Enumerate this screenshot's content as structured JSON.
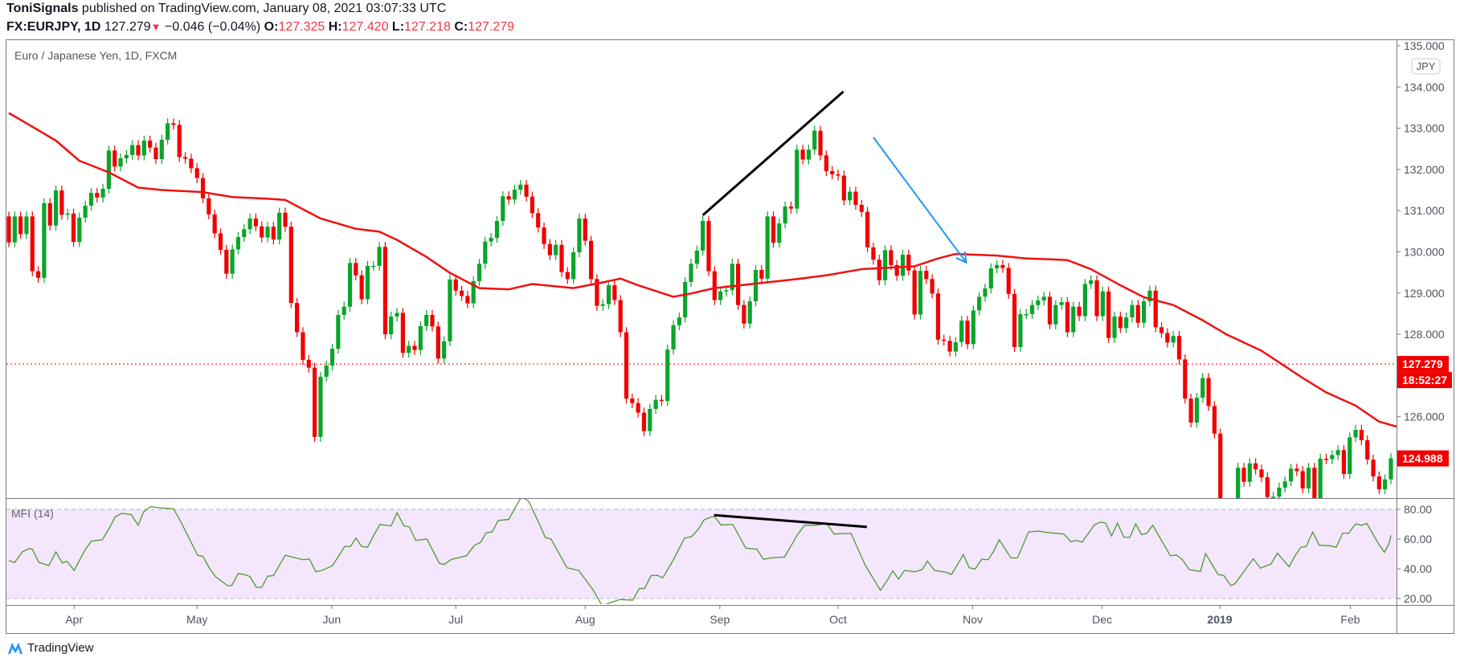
{
  "header": {
    "author": "ToniSignals",
    "published": " published on TradingView.com, January 08, 2021 03:07:33 UTC",
    "symbol": "FX:EURJPY, 1D",
    "last": "127.279",
    "change": "−0.046 (−0.04%)",
    "o_label": "O:",
    "o": "127.325",
    "h_label": "H:",
    "h": "127.420",
    "l_label": "L:",
    "l": "127.218",
    "c_label": "C:",
    "c": "127.279"
  },
  "footer": {
    "brand": "TradingView",
    "logo_icon": "tradingview-logo-icon"
  },
  "colors": {
    "up": "#0aa52a",
    "down": "#f20000",
    "ma": "#f01010",
    "mfi": "#4f9a2e",
    "mfi_bg": "#f3e6fd",
    "trendline": "#000000",
    "arrow": "#2196f3",
    "price_label": "#f20000"
  },
  "chart_data": [
    {
      "type": "candlestick",
      "title": "Euro / Japanese Yen, 1D, FXCM",
      "currency_badge": "JPY",
      "ylim": [
        124.03,
        135.1
      ],
      "yticks": [
        "135.000",
        "134.000",
        "133.000",
        "132.000",
        "131.000",
        "130.000",
        "129.000",
        "128.000",
        "126.000"
      ],
      "ytick_values": [
        135,
        134,
        133,
        132,
        131,
        130,
        129,
        128,
        126
      ],
      "price_lines": [
        {
          "label": "127.279",
          "value": 127.279,
          "sub": "18:52:27",
          "dotted": true
        },
        {
          "label": "124.988",
          "value": 124.988
        }
      ],
      "xticks": [
        {
          "label": "Apr",
          "bar": 11.1
        },
        {
          "label": "May",
          "bar": 32
        },
        {
          "label": "Jun",
          "bar": 54.9
        },
        {
          "label": "Jul",
          "bar": 76
        },
        {
          "label": "Aug",
          "bar": 98
        },
        {
          "label": "Sep",
          "bar": 120.9
        },
        {
          "label": "Oct",
          "bar": 141
        },
        {
          "label": "Nov",
          "bar": 163.9
        },
        {
          "label": "Dec",
          "bar": 185.9
        },
        {
          "label": "2019",
          "bar": 205.9,
          "bold": true
        },
        {
          "label": "Feb",
          "bar": 228.1
        }
      ],
      "first_open": 130.86,
      "closes": [
        130.23,
        130.86,
        130.43,
        130.86,
        129.53,
        129.37,
        131.18,
        130.64,
        131.49,
        130.9,
        130.93,
        130.24,
        130.83,
        131.12,
        131.43,
        131.32,
        131.53,
        132.46,
        132.07,
        132.27,
        132.35,
        132.59,
        132.34,
        132.7,
        132.53,
        132.25,
        132.72,
        133.12,
        133.08,
        132.3,
        132.26,
        132.03,
        131.79,
        131.3,
        130.91,
        130.45,
        130.05,
        129.47,
        130.06,
        130.36,
        130.55,
        130.81,
        130.62,
        130.35,
        130.61,
        130.3,
        130.95,
        130.61,
        128.76,
        128.05,
        127.38,
        127.19,
        125.51,
        126.97,
        127.24,
        127.65,
        128.47,
        128.67,
        129.73,
        129.43,
        128.85,
        129.66,
        129.66,
        130.12,
        128.0,
        128.43,
        128.52,
        127.55,
        127.72,
        127.62,
        128.2,
        128.47,
        128.19,
        127.41,
        127.83,
        129.33,
        129.06,
        128.93,
        128.75,
        129.29,
        129.71,
        130.25,
        130.34,
        130.75,
        131.35,
        131.27,
        131.51,
        131.63,
        131.34,
        130.94,
        130.59,
        130.19,
        129.92,
        130.17,
        129.51,
        129.34,
        129.99,
        130.81,
        130.27,
        129.34,
        128.69,
        128.73,
        129.19,
        128.83,
        128.05,
        126.44,
        126.33,
        126.1,
        125.65,
        126.19,
        126.41,
        126.38,
        127.63,
        128.22,
        128.41,
        129.27,
        129.71,
        130.03,
        130.75,
        129.53,
        128.83,
        129.04,
        129.07,
        129.71,
        128.71,
        128.26,
        128.8,
        129.56,
        129.35,
        130.86,
        130.22,
        130.69,
        131.1,
        131.05,
        132.48,
        132.24,
        132.48,
        132.94,
        132.34,
        131.96,
        131.88,
        131.85,
        131.25,
        131.46,
        131.14,
        130.97,
        130.11,
        129.81,
        129.31,
        130.04,
        129.68,
        129.42,
        129.93,
        129.55,
        128.48,
        129.54,
        129.34,
        128.99,
        127.87,
        127.84,
        127.58,
        127.81,
        128.33,
        127.76,
        128.58,
        128.91,
        129.11,
        129.6,
        129.68,
        129.61,
        128.98,
        127.69,
        128.49,
        128.49,
        128.71,
        128.82,
        128.91,
        128.24,
        128.71,
        128.78,
        128.05,
        128.67,
        128.44,
        129.22,
        129.31,
        128.44,
        129.04,
        127.91,
        128.43,
        128.15,
        128.41,
        128.71,
        128.28,
        128.8,
        129.06,
        128.17,
        128.03,
        127.8,
        127.96,
        127.39,
        126.44,
        125.86,
        126.46,
        126.94,
        126.26,
        125.59,
        123.4,
        122.9,
        123.6,
        124.76,
        124.42,
        124.87,
        124.72,
        124.53,
        124.05,
        124.06,
        124.28,
        124.43,
        124.74,
        124.68,
        124.26,
        124.76,
        124.02,
        124.98,
        124.97,
        125.07,
        125.19,
        124.61,
        125.5,
        125.68,
        125.43,
        124.96,
        124.55,
        124.24,
        124.48,
        124.99
      ],
      "moving_average": [
        [
          0,
          133.37
        ],
        [
          3,
          133.12
        ],
        [
          8,
          132.7
        ],
        [
          12,
          132.21
        ],
        [
          17,
          131.93
        ],
        [
          22,
          131.56
        ],
        [
          26,
          131.5
        ],
        [
          33,
          131.45
        ],
        [
          38,
          131.33
        ],
        [
          44,
          131.29
        ],
        [
          47,
          131.26
        ],
        [
          53,
          130.81
        ],
        [
          59,
          130.56
        ],
        [
          63,
          130.49
        ],
        [
          66,
          130.29
        ],
        [
          71,
          129.88
        ],
        [
          75,
          129.49
        ],
        [
          80,
          129.12
        ],
        [
          85,
          129.09
        ],
        [
          89,
          129.22
        ],
        [
          96,
          129.12
        ],
        [
          101,
          129.26
        ],
        [
          104,
          129.35
        ],
        [
          107,
          129.19
        ],
        [
          113,
          128.91
        ],
        [
          116,
          128.99
        ],
        [
          120,
          129.12
        ],
        [
          127,
          129.23
        ],
        [
          134,
          129.34
        ],
        [
          139,
          129.43
        ],
        [
          145,
          129.58
        ],
        [
          154,
          129.65
        ],
        [
          158,
          129.84
        ],
        [
          161,
          129.95
        ],
        [
          168,
          129.91
        ],
        [
          173,
          129.84
        ],
        [
          177,
          129.82
        ],
        [
          180,
          129.8
        ],
        [
          184,
          129.58
        ],
        [
          189,
          129.19
        ],
        [
          193,
          128.9
        ],
        [
          198,
          128.71
        ],
        [
          203,
          128.34
        ],
        [
          207,
          128.0
        ],
        [
          213,
          127.6
        ],
        [
          220,
          126.94
        ],
        [
          224,
          126.59
        ],
        [
          229,
          126.27
        ],
        [
          233,
          125.88
        ],
        [
          236,
          125.76
        ]
      ],
      "drawings": [
        {
          "kind": "trendline",
          "from": [
            118.0,
            130.89
          ],
          "to": [
            141.9,
            133.89
          ]
        },
        {
          "kind": "arrow",
          "from": [
            147.0,
            132.78
          ],
          "to": [
            162.8,
            129.74
          ]
        }
      ]
    },
    {
      "type": "line",
      "title": "MFI (14)",
      "ylim": [
        14,
        93
      ],
      "yticks": [
        "80.00",
        "60.00",
        "40.00",
        "20.00"
      ],
      "ytick_values": [
        80,
        60,
        40,
        20
      ],
      "bands": [
        20,
        80
      ],
      "points": [
        [
          0,
          45.5
        ],
        [
          1,
          44.3
        ],
        [
          2.3,
          51.4
        ],
        [
          3.5,
          53.6
        ],
        [
          4,
          53.2
        ],
        [
          5.1,
          44.3
        ],
        [
          6.8,
          42.1
        ],
        [
          8,
          51.4
        ],
        [
          9.1,
          43.9
        ],
        [
          9.9,
          45
        ],
        [
          11.1,
          38.9
        ],
        [
          12.9,
          52.3
        ],
        [
          14,
          58.6
        ],
        [
          15.9,
          59.5
        ],
        [
          17.1,
          67.5
        ],
        [
          18.1,
          75
        ],
        [
          19.2,
          77.3
        ],
        [
          20.8,
          76.4
        ],
        [
          22,
          69.3
        ],
        [
          22.9,
          78.2
        ],
        [
          24.1,
          81.8
        ],
        [
          26,
          80.9
        ],
        [
          28,
          80.4
        ],
        [
          29.2,
          72
        ],
        [
          32.1,
          49.1
        ],
        [
          33,
          48.4
        ],
        [
          34.2,
          39.8
        ],
        [
          35.2,
          34.5
        ],
        [
          37.2,
          28.6
        ],
        [
          37.9,
          28.7
        ],
        [
          39,
          36.8
        ],
        [
          40,
          36.2
        ],
        [
          41,
          34.8
        ],
        [
          42.1,
          27.5
        ],
        [
          43,
          27.5
        ],
        [
          44,
          35
        ],
        [
          45,
          35.4
        ],
        [
          45.9,
          41.6
        ],
        [
          47,
          49.1
        ],
        [
          48.6,
          47.5
        ],
        [
          50.1,
          46.1
        ],
        [
          51.1,
          46.6
        ],
        [
          52.2,
          38
        ],
        [
          53.2,
          38.9
        ],
        [
          55,
          42
        ],
        [
          56.1,
          48.8
        ],
        [
          57.1,
          55
        ],
        [
          58.1,
          55
        ],
        [
          59,
          60.7
        ],
        [
          60,
          55
        ],
        [
          61,
          54.5
        ],
        [
          62,
          62.1
        ],
        [
          63.1,
          69.8
        ],
        [
          65,
          68.8
        ],
        [
          66,
          77.7
        ],
        [
          67.2,
          68.9
        ],
        [
          68.1,
          68.2
        ],
        [
          69.2,
          59.1
        ],
        [
          71.1,
          60
        ],
        [
          73.2,
          43.7
        ],
        [
          74,
          42.9
        ],
        [
          75.3,
          46.4
        ],
        [
          77.8,
          48.7
        ],
        [
          79.2,
          55.9
        ],
        [
          80.2,
          57.7
        ],
        [
          81.2,
          64.3
        ],
        [
          82.2,
          64.8
        ],
        [
          83.2,
          72.5
        ],
        [
          85,
          73.2
        ],
        [
          86.2,
          81.8
        ],
        [
          87.2,
          88.5
        ],
        [
          88.4,
          85.4
        ],
        [
          90.3,
          69.3
        ],
        [
          91.2,
          61.2
        ],
        [
          92.2,
          60
        ],
        [
          94.9,
          40.7
        ],
        [
          96.9,
          38.9
        ],
        [
          99.4,
          25.5
        ],
        [
          100.9,
          14.8
        ],
        [
          102.1,
          17
        ],
        [
          103.9,
          19.3
        ],
        [
          106.1,
          18.9
        ],
        [
          107.2,
          26.8
        ],
        [
          108.1,
          26.8
        ],
        [
          109.2,
          35.4
        ],
        [
          110.2,
          35.7
        ],
        [
          111.2,
          33.9
        ],
        [
          113,
          46.1
        ],
        [
          114.9,
          60.7
        ],
        [
          116.1,
          61.6
        ],
        [
          117.4,
          67.5
        ],
        [
          118.2,
          72.9
        ],
        [
          119.5,
          75
        ],
        [
          120,
          75
        ],
        [
          121.1,
          69.5
        ],
        [
          123.1,
          69.8
        ],
        [
          125.3,
          53.9
        ],
        [
          127.2,
          53.2
        ],
        [
          128.3,
          46.4
        ],
        [
          129.9,
          47.5
        ],
        [
          131.9,
          47.9
        ],
        [
          134.1,
          63
        ],
        [
          135.3,
          69.3
        ],
        [
          137.2,
          69.3
        ],
        [
          139.1,
          70.5
        ],
        [
          140.3,
          63.4
        ],
        [
          143.2,
          63.9
        ],
        [
          145.6,
          42.5
        ],
        [
          148.2,
          25.5
        ],
        [
          149.3,
          31.8
        ],
        [
          150.3,
          38.6
        ],
        [
          151.3,
          33
        ],
        [
          152.3,
          38.9
        ],
        [
          154.1,
          38
        ],
        [
          155.3,
          39.5
        ],
        [
          156.2,
          45.2
        ],
        [
          157.4,
          38.9
        ],
        [
          159.3,
          37.7
        ],
        [
          160.3,
          36.2
        ],
        [
          162.3,
          49.6
        ],
        [
          163.3,
          40.7
        ],
        [
          164.3,
          39.8
        ],
        [
          165.4,
          46.4
        ],
        [
          166.5,
          46.1
        ],
        [
          167.4,
          51.4
        ],
        [
          168.4,
          59.5
        ],
        [
          170.4,
          47.3
        ],
        [
          171.5,
          47.3
        ],
        [
          173.4,
          64.8
        ],
        [
          175,
          65.4
        ],
        [
          176.9,
          64.3
        ],
        [
          179.4,
          63.4
        ],
        [
          180.6,
          58.2
        ],
        [
          181.4,
          59.1
        ],
        [
          182.5,
          58
        ],
        [
          184.6,
          69.6
        ],
        [
          185.6,
          71.4
        ],
        [
          186.5,
          70.7
        ],
        [
          187.5,
          62.1
        ],
        [
          188.5,
          70.7
        ],
        [
          189.6,
          61.2
        ],
        [
          190.6,
          61.1
        ],
        [
          191.6,
          70.2
        ],
        [
          192.6,
          63
        ],
        [
          193.5,
          63.9
        ],
        [
          194.5,
          69.3
        ],
        [
          197.5,
          48.8
        ],
        [
          198.5,
          49.3
        ],
        [
          199.5,
          46.4
        ],
        [
          200.7,
          39.5
        ],
        [
          202.6,
          38.2
        ],
        [
          203.5,
          50.2
        ],
        [
          205.6,
          36.2
        ],
        [
          206.6,
          35.4
        ],
        [
          207.8,
          28.6
        ],
        [
          208.5,
          30
        ],
        [
          211.6,
          46.8
        ],
        [
          212.8,
          40.4
        ],
        [
          214.6,
          43.2
        ],
        [
          215.7,
          50.5
        ],
        [
          217.7,
          41.3
        ],
        [
          218.7,
          48.8
        ],
        [
          219.7,
          54.5
        ],
        [
          220.6,
          55
        ],
        [
          221.7,
          64.8
        ],
        [
          222.8,
          55.9
        ],
        [
          224.6,
          55.5
        ],
        [
          225.7,
          54.5
        ],
        [
          226.8,
          63.9
        ],
        [
          227.8,
          63.9
        ],
        [
          229,
          70.2
        ],
        [
          230,
          69.3
        ],
        [
          230.9,
          70.5
        ],
        [
          232.9,
          56.8
        ],
        [
          233.9,
          51.1
        ],
        [
          234.7,
          57.1
        ],
        [
          235,
          62.5
        ]
      ],
      "drawings": [
        {
          "kind": "trendline",
          "from": [
            119.9,
            76.1
          ],
          "to": [
            145.9,
            68.2
          ]
        }
      ]
    }
  ]
}
